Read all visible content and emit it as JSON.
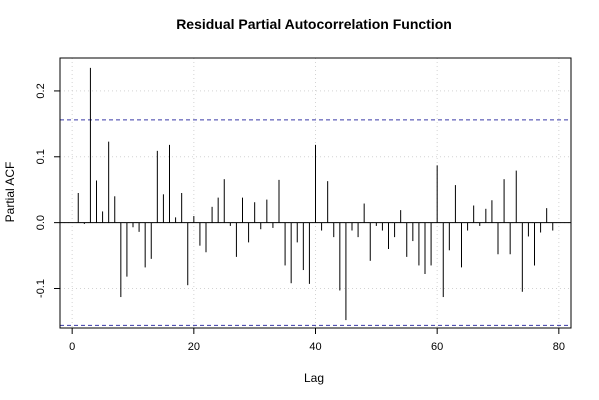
{
  "chart_data": {
    "type": "bar",
    "title": "Residual Partial Autocorrelation Function",
    "xlabel": "Lag",
    "ylabel": "Partial ACF",
    "xlim": [
      -2,
      82
    ],
    "ylim": [
      -0.16,
      0.25
    ],
    "x_ticks": [
      0,
      20,
      40,
      60,
      80
    ],
    "y_ticks": [
      -0.1,
      0.0,
      0.1,
      0.2
    ],
    "y_tick_labels": [
      "-0.1",
      "0.0",
      "0.1",
      "0.2"
    ],
    "confidence_band": [
      -0.156,
      0.156
    ],
    "grid": true,
    "lags": [
      1,
      2,
      3,
      4,
      5,
      6,
      7,
      8,
      9,
      10,
      11,
      12,
      13,
      14,
      15,
      16,
      17,
      18,
      19,
      20,
      21,
      22,
      23,
      24,
      25,
      26,
      27,
      28,
      29,
      30,
      31,
      32,
      33,
      34,
      35,
      36,
      37,
      38,
      39,
      40,
      41,
      42,
      43,
      44,
      45,
      46,
      47,
      48,
      49,
      50,
      51,
      52,
      53,
      54,
      55,
      56,
      57,
      58,
      59,
      60,
      61,
      62,
      63,
      64,
      65,
      66,
      67,
      68,
      69,
      70,
      71,
      72,
      73,
      74,
      75,
      76,
      77,
      78,
      79
    ],
    "values": [
      0.045,
      -0.002,
      0.235,
      0.064,
      0.017,
      0.123,
      0.04,
      -0.113,
      -0.082,
      -0.007,
      -0.014,
      -0.068,
      -0.055,
      0.109,
      0.043,
      0.118,
      0.008,
      0.045,
      -0.095,
      0.01,
      -0.035,
      -0.045,
      0.024,
      0.038,
      0.066,
      -0.005,
      -0.052,
      0.038,
      -0.03,
      0.031,
      -0.01,
      0.035,
      -0.008,
      0.065,
      -0.065,
      -0.092,
      -0.03,
      -0.072,
      -0.093,
      0.118,
      -0.012,
      0.063,
      -0.022,
      -0.103,
      -0.148,
      -0.012,
      -0.022,
      0.029,
      -0.058,
      -0.005,
      -0.012,
      -0.04,
      -0.022,
      0.019,
      -0.052,
      -0.028,
      -0.065,
      -0.078,
      -0.065,
      0.087,
      -0.113,
      -0.042,
      0.057,
      -0.068,
      -0.012,
      0.026,
      -0.005,
      0.021,
      0.034,
      -0.048,
      0.066,
      -0.048,
      0.079,
      -0.105,
      -0.021,
      -0.065,
      -0.015,
      0.022,
      -0.012
    ]
  }
}
